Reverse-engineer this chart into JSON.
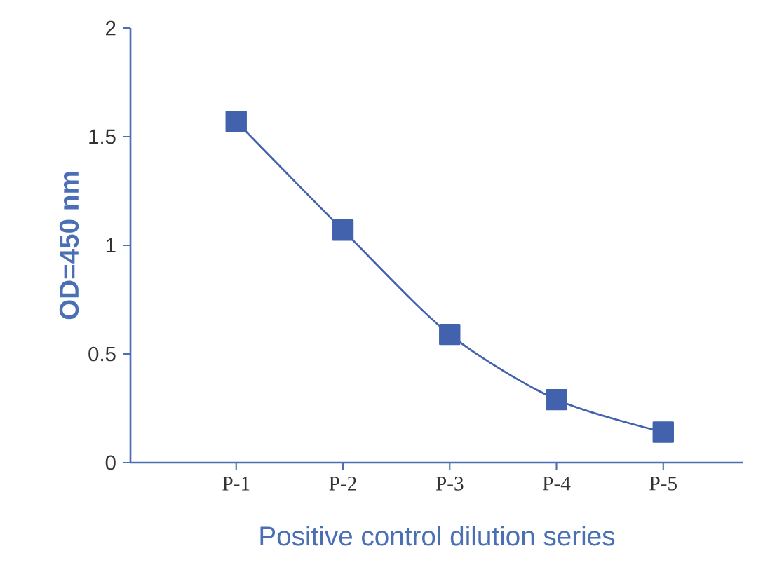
{
  "chart_data": {
    "type": "line",
    "xlabel": "Positive control dilution series",
    "ylabel": "OD=450 nm",
    "categories": [
      "P-1",
      "P-2",
      "P-3",
      "P-4",
      "P-5"
    ],
    "series": [
      {
        "color": "#4262ad",
        "values": [
          1.57,
          1.07,
          0.59,
          0.29,
          0.14
        ]
      }
    ],
    "ylim": [
      0,
      2
    ],
    "yticks": [
      0,
      0.5,
      1,
      1.5,
      2
    ],
    "marker": "square",
    "line_style": "solid"
  }
}
